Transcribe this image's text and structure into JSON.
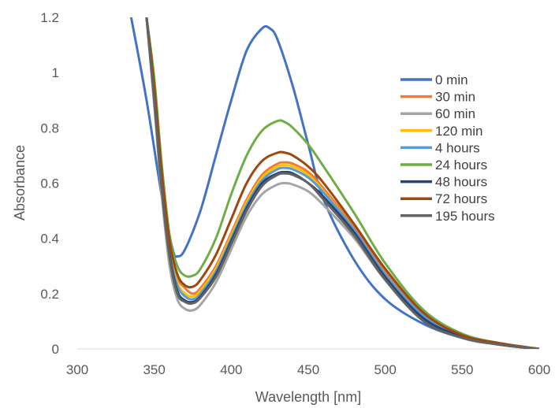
{
  "chart_data": {
    "type": "line",
    "title": "",
    "xlabel": "Wavelength [nm]",
    "ylabel": "Absorbance",
    "xlim": [
      300,
      600
    ],
    "ylim": [
      0,
      1.2
    ],
    "x_ticks": [
      "300",
      "350",
      "400",
      "450",
      "500",
      "550",
      "600"
    ],
    "y_ticks": [
      "0",
      "0.2",
      "0.4",
      "0.6",
      "0.8",
      "1",
      "1.2"
    ],
    "grid": false,
    "legend_position": "right",
    "series": [
      {
        "name": "0 min",
        "color": "#4472C4",
        "x": [
          335,
          345,
          355,
          362,
          365,
          370,
          380,
          390,
          400,
          410,
          420,
          425,
          430,
          440,
          450,
          460,
          480,
          500,
          525,
          550,
          575,
          600
        ],
        "y": [
          1.2,
          0.9,
          0.55,
          0.36,
          0.335,
          0.36,
          0.5,
          0.7,
          0.9,
          1.08,
          1.16,
          1.16,
          1.12,
          0.95,
          0.74,
          0.54,
          0.32,
          0.18,
          0.09,
          0.04,
          0.015,
          0.0
        ]
      },
      {
        "name": "30 min",
        "color": "#ED7D31",
        "x": [
          345,
          350,
          355,
          360,
          365,
          370,
          375,
          380,
          390,
          400,
          410,
          420,
          430,
          435,
          440,
          450,
          460,
          480,
          500,
          525,
          550,
          575,
          600
        ],
        "y": [
          1.2,
          0.95,
          0.62,
          0.38,
          0.26,
          0.22,
          0.2,
          0.22,
          0.3,
          0.42,
          0.54,
          0.63,
          0.67,
          0.675,
          0.67,
          0.64,
          0.58,
          0.44,
          0.28,
          0.13,
          0.05,
          0.02,
          0.0
        ]
      },
      {
        "name": "60 min",
        "color": "#A5A5A5",
        "x": [
          345,
          350,
          355,
          360,
          365,
          370,
          375,
          380,
          390,
          400,
          410,
          420,
          430,
          435,
          440,
          450,
          460,
          480,
          500,
          525,
          550,
          575,
          600
        ],
        "y": [
          1.2,
          0.88,
          0.55,
          0.3,
          0.18,
          0.145,
          0.14,
          0.16,
          0.24,
          0.36,
          0.48,
          0.56,
          0.595,
          0.6,
          0.595,
          0.57,
          0.52,
          0.4,
          0.25,
          0.11,
          0.04,
          0.015,
          0.0
        ]
      },
      {
        "name": "120 min",
        "color": "#FFC000",
        "x": [
          345,
          350,
          355,
          360,
          365,
          370,
          375,
          380,
          390,
          400,
          410,
          420,
          430,
          435,
          440,
          450,
          460,
          480,
          500,
          525,
          550,
          575,
          600
        ],
        "y": [
          1.2,
          0.93,
          0.6,
          0.36,
          0.24,
          0.2,
          0.19,
          0.21,
          0.29,
          0.41,
          0.53,
          0.62,
          0.66,
          0.665,
          0.66,
          0.63,
          0.57,
          0.43,
          0.27,
          0.12,
          0.05,
          0.02,
          0.0
        ]
      },
      {
        "name": "4 hours",
        "color": "#5B9BD5",
        "x": [
          345,
          350,
          355,
          360,
          365,
          370,
          375,
          380,
          390,
          400,
          410,
          420,
          430,
          435,
          440,
          450,
          460,
          480,
          500,
          525,
          550,
          575,
          600
        ],
        "y": [
          1.2,
          0.92,
          0.59,
          0.35,
          0.23,
          0.19,
          0.18,
          0.2,
          0.28,
          0.4,
          0.52,
          0.61,
          0.65,
          0.655,
          0.65,
          0.62,
          0.565,
          0.43,
          0.27,
          0.12,
          0.05,
          0.02,
          0.0
        ]
      },
      {
        "name": "24 hours",
        "color": "#70AD47",
        "x": [
          345,
          350,
          355,
          360,
          365,
          370,
          375,
          380,
          390,
          400,
          410,
          420,
          430,
          435,
          440,
          450,
          460,
          480,
          500,
          525,
          550,
          575,
          600
        ],
        "y": [
          1.2,
          0.98,
          0.66,
          0.41,
          0.3,
          0.265,
          0.265,
          0.29,
          0.4,
          0.56,
          0.7,
          0.79,
          0.825,
          0.82,
          0.8,
          0.74,
          0.66,
          0.49,
          0.31,
          0.14,
          0.055,
          0.02,
          0.0
        ]
      },
      {
        "name": "48 hours",
        "color": "#264478",
        "x": [
          345,
          350,
          355,
          360,
          365,
          370,
          375,
          380,
          390,
          400,
          410,
          420,
          430,
          435,
          440,
          450,
          460,
          480,
          500,
          525,
          550,
          575,
          600
        ],
        "y": [
          1.2,
          0.91,
          0.58,
          0.34,
          0.21,
          0.175,
          0.17,
          0.19,
          0.27,
          0.39,
          0.51,
          0.6,
          0.635,
          0.64,
          0.635,
          0.6,
          0.55,
          0.42,
          0.26,
          0.11,
          0.045,
          0.015,
          0.0
        ]
      },
      {
        "name": "72 hours",
        "color": "#9E480E",
        "x": [
          345,
          350,
          355,
          360,
          365,
          370,
          375,
          380,
          390,
          400,
          410,
          420,
          430,
          435,
          440,
          450,
          460,
          480,
          500,
          525,
          550,
          575,
          600
        ],
        "y": [
          1.2,
          0.95,
          0.63,
          0.39,
          0.27,
          0.23,
          0.225,
          0.25,
          0.34,
          0.47,
          0.6,
          0.68,
          0.71,
          0.71,
          0.7,
          0.66,
          0.6,
          0.45,
          0.29,
          0.13,
          0.05,
          0.02,
          0.0
        ]
      },
      {
        "name": "195 hours",
        "color": "#636363",
        "x": [
          345,
          350,
          355,
          360,
          365,
          370,
          375,
          380,
          390,
          400,
          410,
          420,
          430,
          435,
          440,
          450,
          460,
          480,
          500,
          525,
          550,
          575,
          600
        ],
        "y": [
          1.2,
          0.9,
          0.57,
          0.33,
          0.2,
          0.17,
          0.165,
          0.185,
          0.26,
          0.38,
          0.5,
          0.59,
          0.63,
          0.635,
          0.63,
          0.6,
          0.54,
          0.41,
          0.25,
          0.1,
          0.04,
          0.015,
          0.0
        ]
      }
    ]
  }
}
